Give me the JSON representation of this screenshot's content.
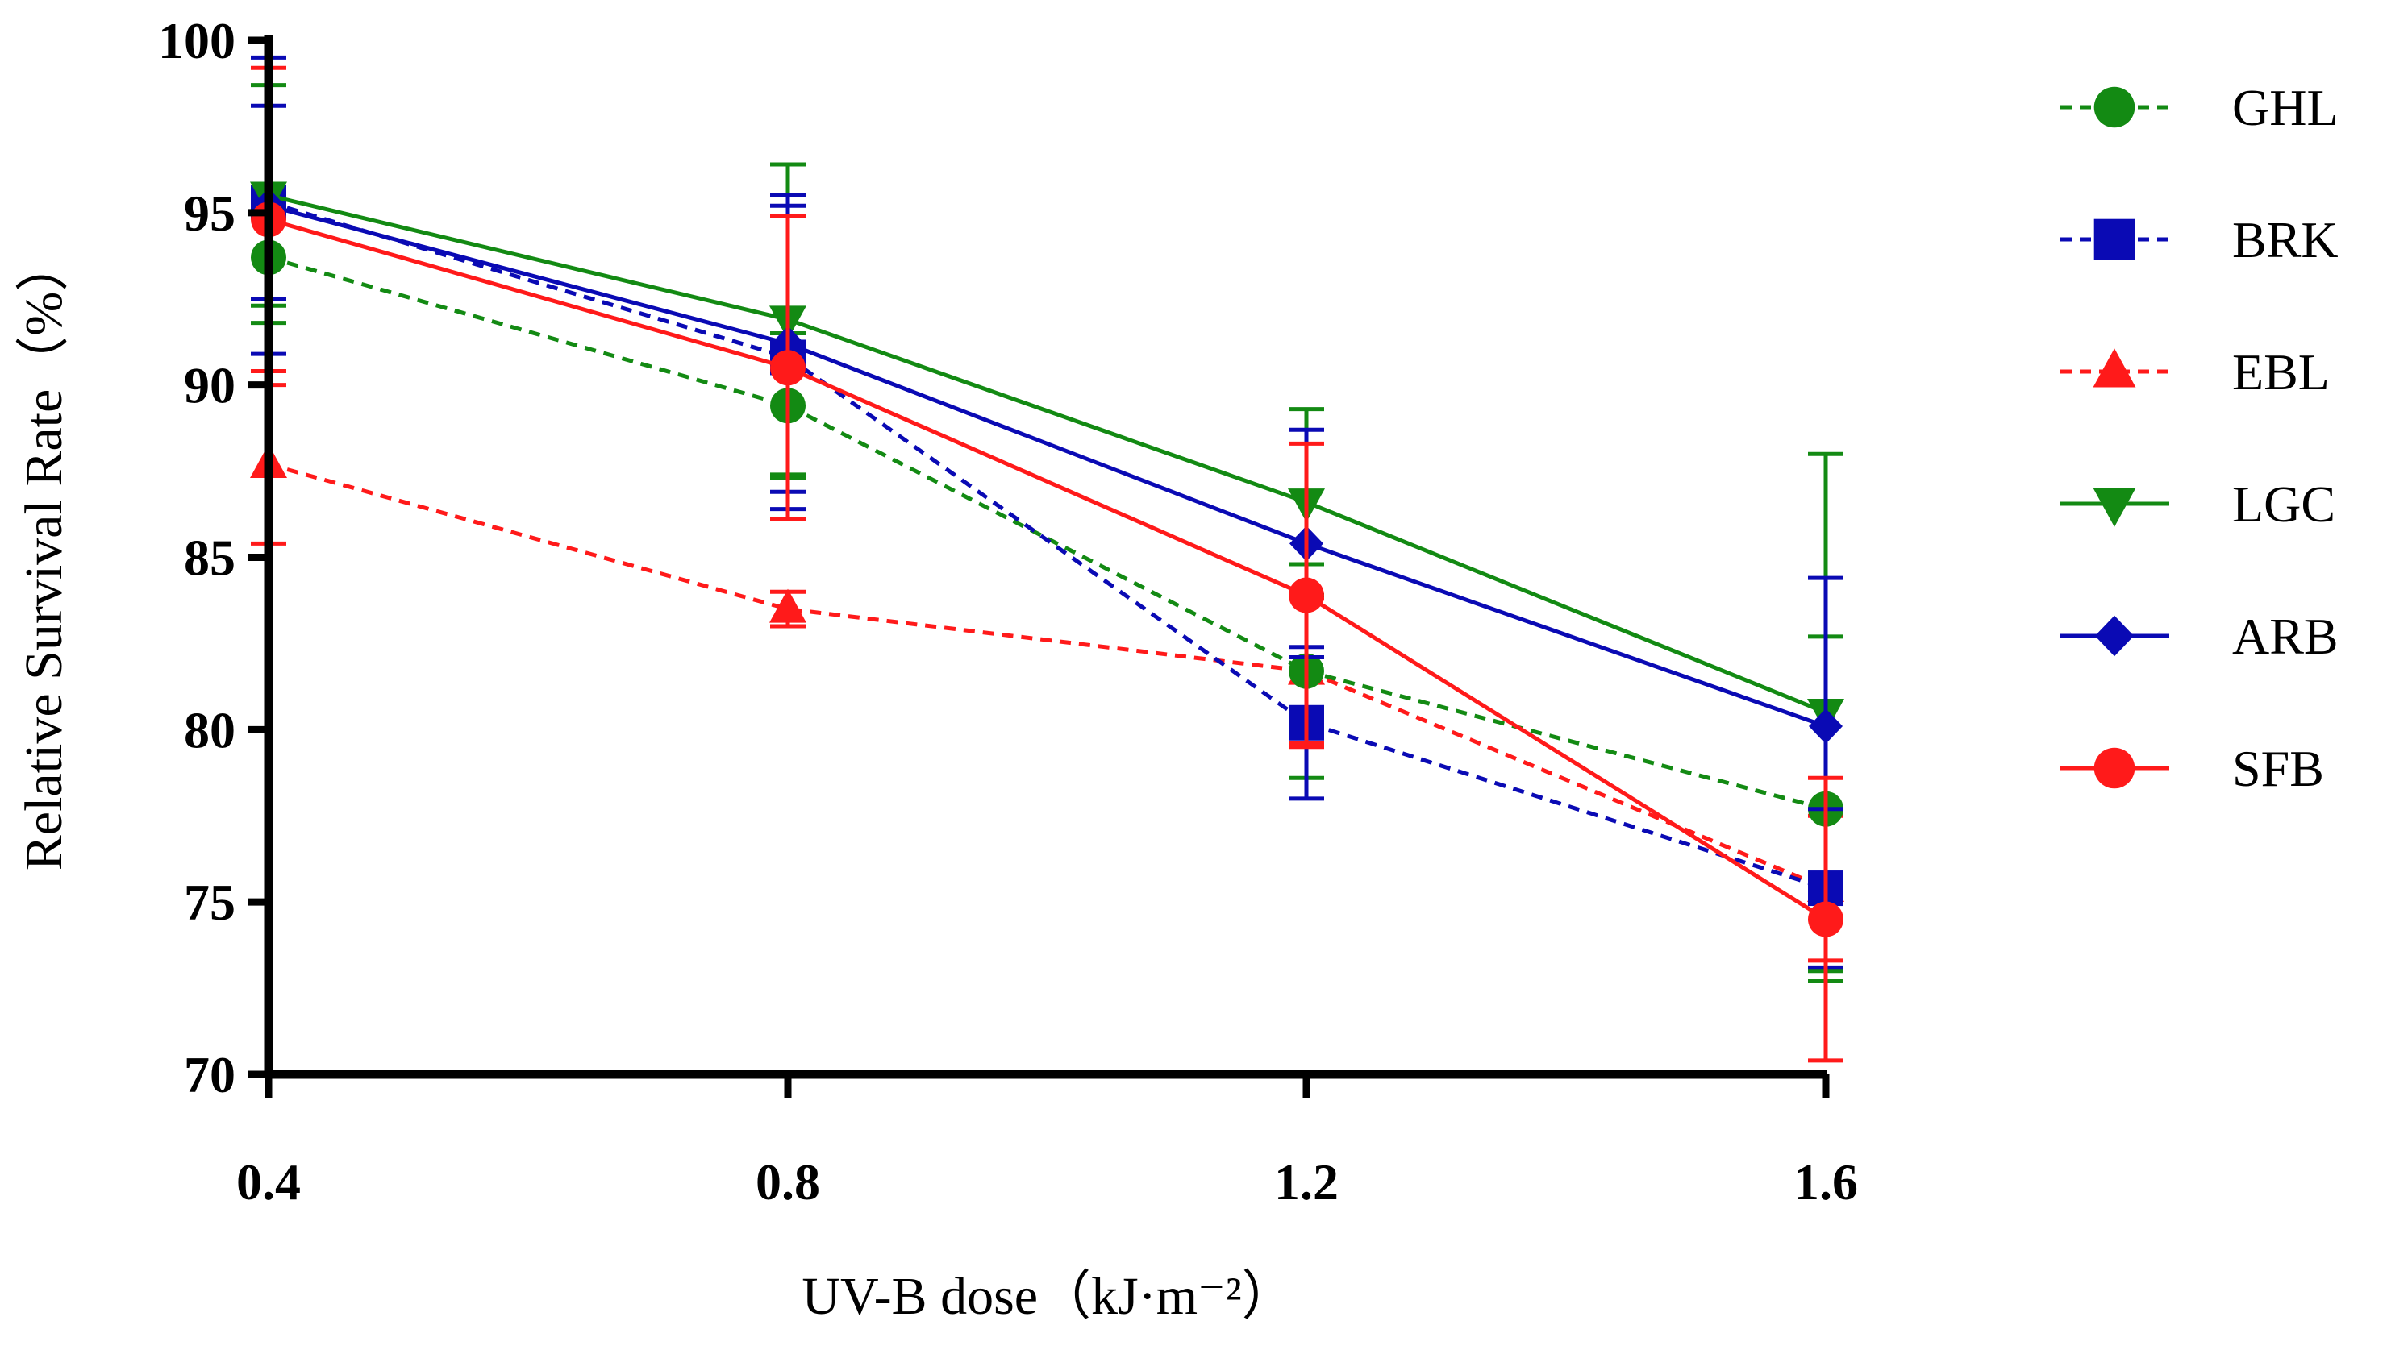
{
  "chart_data": {
    "type": "line",
    "title": "",
    "xlabel": "UV-B dose（kJ·m⁻²）",
    "ylabel": "Relative Survival Rate（%）",
    "x": [
      0.4,
      0.8,
      1.2,
      1.6
    ],
    "x_tick_labels": [
      "0.4",
      "0.8",
      "1.2",
      "1.6"
    ],
    "ylim": [
      70,
      100
    ],
    "y_ticks": [
      70,
      75,
      80,
      85,
      90,
      95,
      100
    ],
    "y_tick_labels": [
      "70",
      "75",
      "80",
      "85",
      "90",
      "95",
      "100"
    ],
    "grid": false,
    "legend_position": "right",
    "series": [
      {
        "name": "GHL",
        "color": "#138a13",
        "dash": "dashed",
        "marker": "circle",
        "values": [
          93.7,
          89.4,
          81.7,
          77.7
        ],
        "errors": [
          1.9,
          2.1,
          3.1,
          5.0
        ]
      },
      {
        "name": "BRK",
        "color": "#0a0ab4",
        "dash": "dashed",
        "marker": "square",
        "values": [
          95.3,
          90.8,
          80.2,
          75.4
        ],
        "errors": [
          2.8,
          4.4,
          2.2,
          2.3
        ]
      },
      {
        "name": "EBL",
        "color": "#ff1a1a",
        "dash": "dashed",
        "marker": "triangle-up",
        "values": [
          87.7,
          83.5,
          81.7,
          75.4
        ],
        "errors": [
          2.3,
          0.5,
          2.1,
          2.1
        ]
      },
      {
        "name": "LGC",
        "color": "#138a13",
        "dash": "solid",
        "marker": "triangle-down",
        "values": [
          95.5,
          91.9,
          86.6,
          80.5
        ],
        "errors": [
          3.2,
          4.5,
          2.7,
          7.5
        ]
      },
      {
        "name": "ARB",
        "color": "#0a0ab4",
        "dash": "solid",
        "marker": "diamond",
        "values": [
          95.2,
          91.2,
          85.4,
          80.1
        ],
        "errors": [
          4.3,
          4.3,
          3.3,
          4.3
        ]
      },
      {
        "name": "SFB",
        "color": "#ff1a1a",
        "dash": "solid",
        "marker": "circle",
        "values": [
          94.8,
          90.5,
          83.9,
          74.5
        ],
        "errors": [
          4.4,
          4.4,
          4.4,
          4.1
        ]
      }
    ]
  }
}
